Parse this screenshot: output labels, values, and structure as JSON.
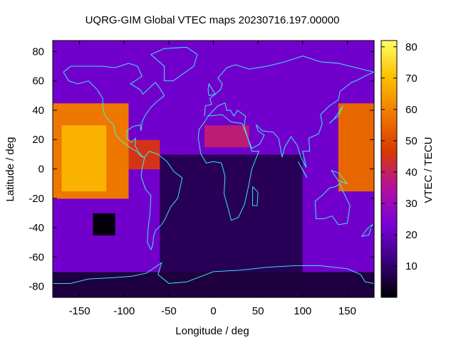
{
  "chart_data": {
    "type": "heatmap",
    "title": "UQRG-GIM Global VTEC maps 20230716.197.00000",
    "xlabel": "Longitude / deg",
    "ylabel": "Latitude / deg",
    "colorbar_label": "VTEC / TECU",
    "xlim": [
      -180,
      180
    ],
    "ylim": [
      -87.5,
      87.5
    ],
    "colorbar_range": [
      0,
      82
    ],
    "x_ticks": [
      -150,
      -100,
      -50,
      0,
      50,
      100,
      150
    ],
    "y_ticks": [
      -80,
      -60,
      -40,
      -20,
      0,
      20,
      40,
      60,
      80
    ],
    "colorbar_ticks": [
      10,
      20,
      30,
      40,
      50,
      60,
      70,
      80
    ],
    "colormap": [
      "#000000",
      "#3a007f",
      "#7a00d8",
      "#b4129b",
      "#d93a00",
      "#ef7a00",
      "#fbbf00",
      "#ffff66"
    ],
    "coastline_color": "#33ffee",
    "grid": false,
    "regions": [
      {
        "name": "background",
        "lon": [
          -180,
          180
        ],
        "lat": [
          -87.5,
          87.5
        ],
        "vtec": 22
      },
      {
        "name": "eastern-pacific-crest",
        "lon": [
          -180,
          -95
        ],
        "lat": [
          -20,
          45
        ],
        "vtec": 58
      },
      {
        "name": "eastern-pacific-peak",
        "lon": [
          -170,
          -120
        ],
        "lat": [
          -15,
          30
        ],
        "vtec": 68
      },
      {
        "name": "western-pacific-crest",
        "lon": [
          140,
          180
        ],
        "lat": [
          -15,
          45
        ],
        "vtec": 55
      },
      {
        "name": "central-america-band",
        "lon": [
          -95,
          -60
        ],
        "lat": [
          0,
          20
        ],
        "vtec": 45
      },
      {
        "name": "north-africa-band",
        "lon": [
          -10,
          40
        ],
        "lat": [
          15,
          30
        ],
        "vtec": 38
      },
      {
        "name": "south-atlantic-low",
        "lon": [
          -60,
          100
        ],
        "lat": [
          -70,
          10
        ],
        "vtec": 8
      },
      {
        "name": "pacific-hole",
        "lon": [
          -137,
          -112
        ],
        "lat": [
          -45,
          -30
        ],
        "vtec": 1
      },
      {
        "name": "antarctic-low",
        "lon": [
          -180,
          180
        ],
        "lat": [
          -87.5,
          -70
        ],
        "vtec": 6
      }
    ]
  }
}
